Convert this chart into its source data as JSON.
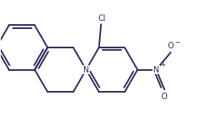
{
  "bg_color": "#ffffff",
  "line_color": "#2a2a5a",
  "text_color": "#2a2a5a",
  "lw": 1.4,
  "figsize": [
    2.75,
    1.54
  ],
  "dpi": 100,
  "xlim": [
    -0.5,
    4.8
  ],
  "ylim": [
    -1.1,
    1.5
  ]
}
